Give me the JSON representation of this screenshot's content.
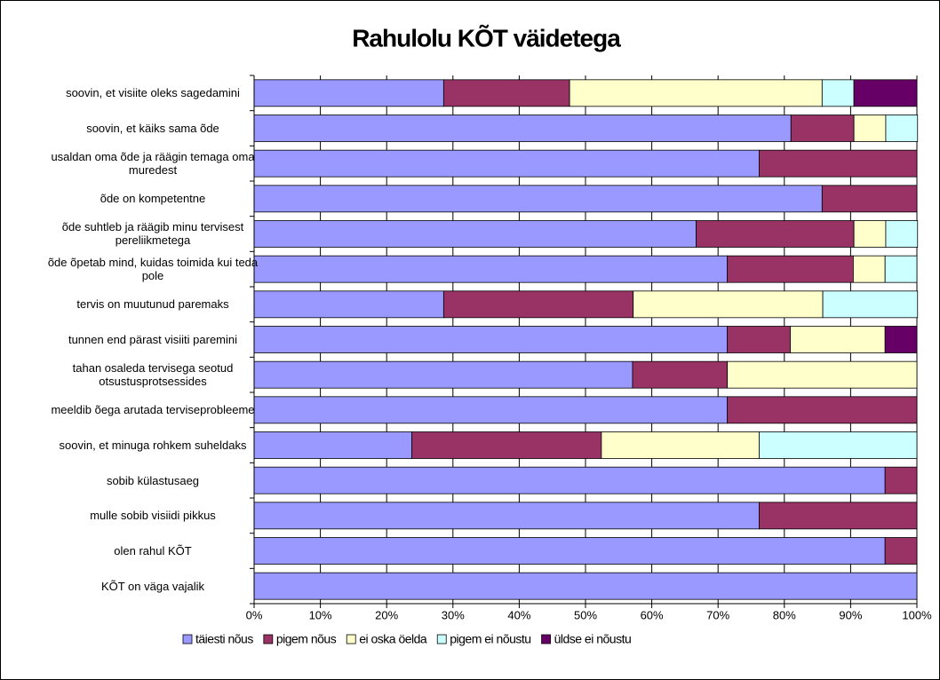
{
  "chart_data": {
    "type": "stacked_bar_horizontal",
    "title": "Rahulolu KÕT väidetega",
    "categories": [
      "soovin, et visiite oleks sagedamini",
      "soovin, et käiks sama õde",
      "usaldan oma õde ja räägin temaga oma muredest",
      "õde on kompetentne",
      "õde suhtleb ja räägib minu tervisest pereliikmetega",
      "õde õpetab mind, kuidas toimida kui teda pole",
      "tervis on muutunud paremaks",
      "tunnen end pärast visiiti paremini",
      "tahan osaleda tervisega seotud otsustusprotsessides",
      "meeldib õega arutada terviseprobleeme",
      "soovin, et minuga rohkem suheldaks",
      "sobib külastusaeg",
      "mulle sobib visiidi pikkus",
      "olen rahul KÕT",
      "KÕT on väga vajalik"
    ],
    "series": [
      {
        "name": "täiesti nõus",
        "color": "#9999ff",
        "values": [
          28.6,
          81.0,
          76.2,
          85.7,
          66.7,
          71.4,
          28.6,
          71.4,
          57.1,
          71.4,
          23.8,
          95.2,
          76.2,
          95.2,
          100
        ]
      },
      {
        "name": "pigem nõus",
        "color": "#993366",
        "values": [
          19.0,
          9.5,
          23.8,
          14.3,
          23.8,
          19.0,
          28.6,
          9.5,
          14.3,
          28.6,
          28.6,
          4.8,
          23.8,
          4.8,
          0
        ]
      },
      {
        "name": "ei oska öelda",
        "color": "#ffffcc",
        "values": [
          38.1,
          4.8,
          0,
          0,
          4.8,
          4.8,
          28.6,
          14.3,
          28.6,
          0,
          23.8,
          0,
          0,
          0,
          0
        ]
      },
      {
        "name": "pigem ei nõustu",
        "color": "#ccffff",
        "values": [
          4.8,
          4.8,
          0,
          0,
          4.8,
          4.8,
          14.3,
          0,
          0,
          0,
          23.8,
          0,
          0,
          0,
          0
        ]
      },
      {
        "name": "üldse ei nõustu",
        "color": "#660066",
        "values": [
          9.5,
          0,
          0,
          0,
          0,
          0,
          0,
          4.8,
          0,
          0,
          0,
          0,
          0,
          0,
          0
        ]
      }
    ],
    "xlim": [
      0,
      100
    ],
    "xticks": [
      {
        "value": 0,
        "label": "0%"
      },
      {
        "value": 10,
        "label": "10%"
      },
      {
        "value": 20,
        "label": "20%"
      },
      {
        "value": 30,
        "label": "30%"
      },
      {
        "value": 40,
        "label": "40%"
      },
      {
        "value": 50,
        "label": "50%"
      },
      {
        "value": 60,
        "label": "60%"
      },
      {
        "value": 70,
        "label": "70%"
      },
      {
        "value": 80,
        "label": "80%"
      },
      {
        "value": 90,
        "label": "90%"
      },
      {
        "value": 100,
        "label": "100%"
      }
    ],
    "grid": true,
    "legend": "bottom"
  }
}
